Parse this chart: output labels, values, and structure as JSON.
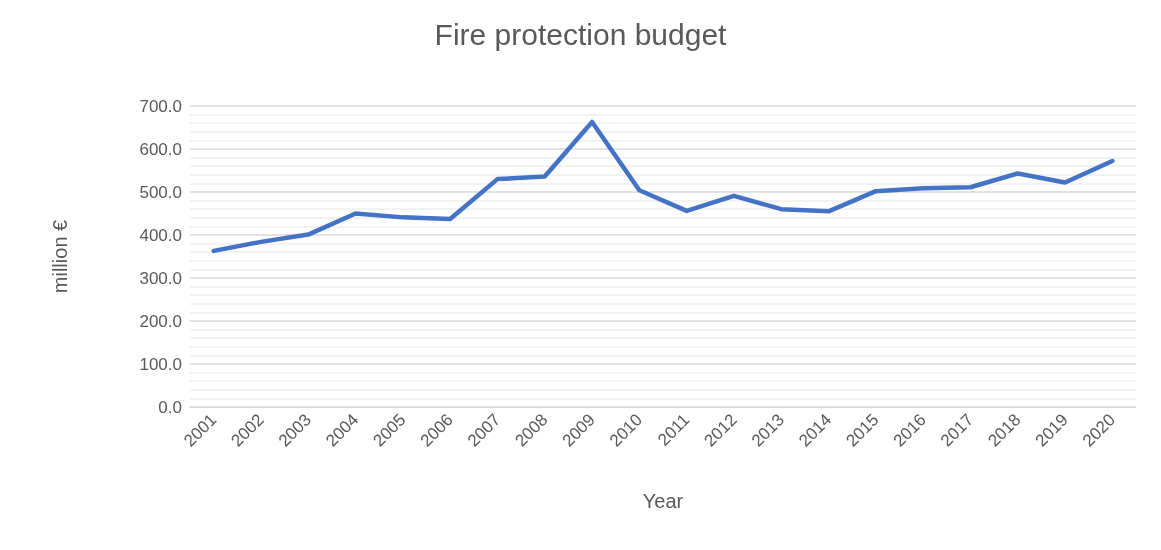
{
  "chart_data": {
    "type": "line",
    "title": "Fire protection budget",
    "xlabel": "Year",
    "ylabel": "million €",
    "categories": [
      "2001",
      "2002",
      "2003",
      "2004",
      "2005",
      "2006",
      "2007",
      "2008",
      "2009",
      "2010",
      "2011",
      "2012",
      "2013",
      "2014",
      "2015",
      "2016",
      "2017",
      "2018",
      "2019",
      "2020"
    ],
    "series": [
      {
        "color": "#4472c4",
        "values": [
          363,
          384,
          401,
          450,
          441,
          437,
          530,
          536,
          663,
          504,
          456,
          491,
          460,
          455,
          502,
          509,
          511,
          543,
          522,
          572
        ]
      }
    ],
    "ylim": [
      0,
      700
    ],
    "yticks": [
      {
        "value": 0,
        "label": "0.0"
      },
      {
        "value": 100,
        "label": "100.0"
      },
      {
        "value": 200,
        "label": "200.0"
      },
      {
        "value": 300,
        "label": "300.0"
      },
      {
        "value": 400,
        "label": "400.0"
      },
      {
        "value": 500,
        "label": "500.0"
      },
      {
        "value": 600,
        "label": "600.0"
      },
      {
        "value": 700,
        "label": "700.0"
      }
    ],
    "grid": "y",
    "marker": "none",
    "line_style": "solid"
  }
}
